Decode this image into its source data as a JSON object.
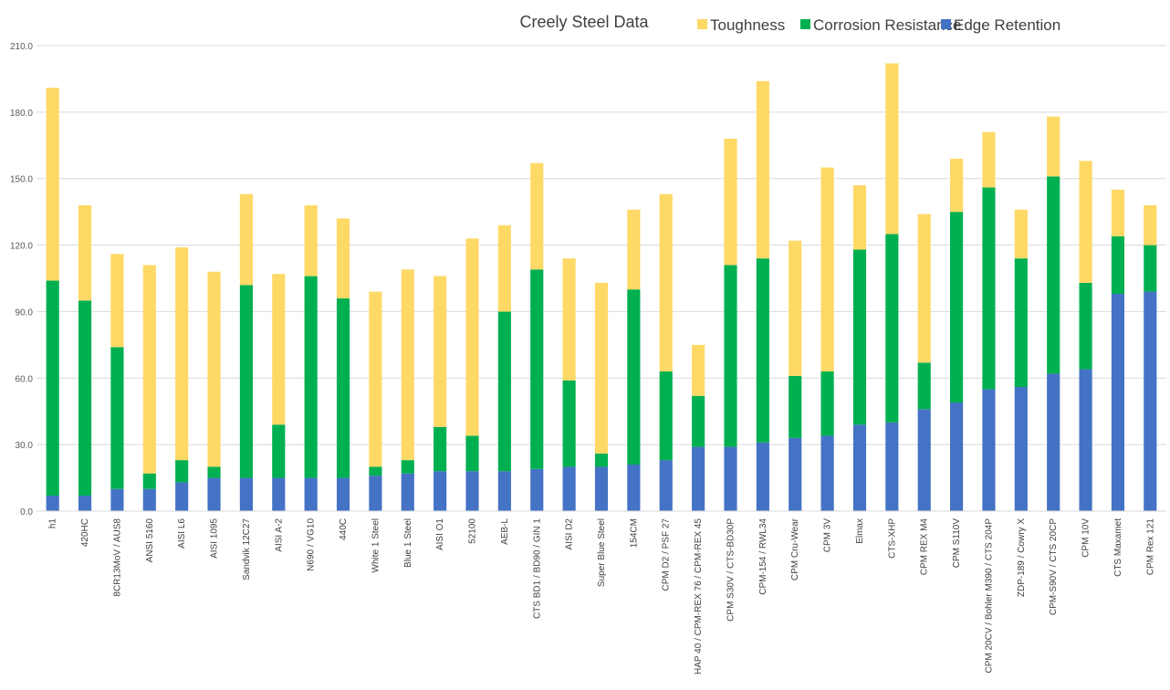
{
  "chart_data": {
    "type": "bar",
    "stacked": true,
    "title": "Creely Steel Data",
    "xlabel": "",
    "ylabel": "",
    "ylim": [
      0,
      210
    ],
    "yticks": [
      "0.0",
      "30.0",
      "60.0",
      "90.0",
      "120.0",
      "150.0",
      "180.0",
      "210.0"
    ],
    "grid": true,
    "legend_position": "top-right",
    "categories": [
      "h1",
      "420HC",
      "8CR13MoV / AUS8",
      "ANSI 5160",
      "AISI L6",
      "AISI 1095",
      "Sandvik 12C27",
      "AISI A-2",
      "N690 / VG10",
      "440C",
      "White 1 Steel",
      "Blue 1 Steel",
      "AISI O1",
      "52100",
      "AEB-L",
      "CTS BD1 / BD90 / GIN 1",
      "AISI D2",
      "Super Blue Steel",
      "154CM",
      "CPM D2 / PSF 27",
      "HAP 40 / CPM-REX 76 / CPM-REX 45",
      "CPM S30V / CTS-BD30P",
      "CPM-154 / RWL34",
      "CPM Cru-Wear",
      "CPM 3V",
      "Elmax",
      "CTS-XHP",
      "CPM REX M4",
      "CPM S110V",
      "CPM 20CV / Bohler M390 / CTS 204P",
      "ZDP-189 / Cowry X",
      "CPM-S90V / CTS 20CP",
      "CPM 10V",
      "CTS Maxamet",
      "CPM Rex 121"
    ],
    "series": [
      {
        "name": "Edge Retention",
        "color": "#4472C4",
        "values": [
          7,
          7,
          10,
          10,
          13,
          15,
          15,
          15,
          15,
          15,
          16,
          17,
          18,
          18,
          18,
          19,
          20,
          20,
          21,
          23,
          29,
          29,
          31,
          33,
          34,
          39,
          40,
          46,
          49,
          55,
          56,
          62,
          64,
          98,
          99
        ]
      },
      {
        "name": "Corrosion Resistance",
        "color": "#00B050",
        "values": [
          97,
          88,
          64,
          7,
          10,
          5,
          87,
          24,
          91,
          81,
          4,
          6,
          20,
          16,
          72,
          90,
          39,
          6,
          79,
          40,
          23,
          82,
          83,
          28,
          29,
          79,
          85,
          21,
          86,
          91,
          58,
          89,
          39,
          26,
          21
        ]
      },
      {
        "name": "Toughness",
        "color": "#FFD966",
        "values": [
          87,
          43,
          42,
          94,
          96,
          88,
          41,
          68,
          32,
          36,
          79,
          86,
          68,
          89,
          39,
          48,
          55,
          77,
          36,
          80,
          23,
          57,
          80,
          61,
          92,
          29,
          77,
          67,
          24,
          25,
          22,
          27,
          55,
          21,
          18
        ]
      }
    ],
    "legend_order": [
      "Toughness",
      "Corrosion Resistance",
      "Edge Retention"
    ]
  }
}
